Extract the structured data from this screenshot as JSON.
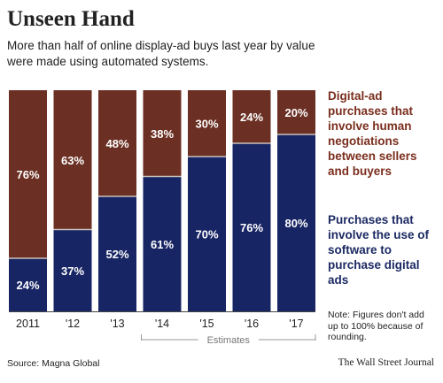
{
  "header": {
    "title": "Unseen Hand",
    "subtitle": "More than half of online display-ad buys last year by value were made using automated systems."
  },
  "legend": {
    "human": "Digital-ad purchases that involve human negotiations between sellers and buyers",
    "software": "Purchases that involve the use of software to purchase digital ads"
  },
  "note": "Note: Figures don't add up to 100% because of rounding.",
  "source": "Source: Magna Global",
  "credit": "The Wall Street Journal",
  "colors": {
    "human": "#6b2f23",
    "software": "#182564"
  },
  "chart_data": {
    "type": "bar",
    "stacked": true,
    "categories": [
      "2011",
      "'12",
      "'13",
      "'14",
      "'15",
      "'16",
      "'17"
    ],
    "series": [
      {
        "name": "Purchases that involve the use of software to purchase digital ads",
        "values": [
          24,
          37,
          52,
          61,
          70,
          76,
          80
        ],
        "labels": [
          "24%",
          "37%",
          "52%",
          "61%",
          "70%",
          "76%",
          "80%"
        ]
      },
      {
        "name": "Digital-ad purchases that involve human negotiations between sellers and buyers",
        "values": [
          76,
          63,
          48,
          38,
          30,
          24,
          20
        ],
        "labels": [
          "76%",
          "63%",
          "48%",
          "38%",
          "30%",
          "24%",
          "20%"
        ]
      }
    ],
    "ylim": [
      0,
      100
    ],
    "annotation": "Estimates",
    "estimate_range": [
      "'14",
      "'17"
    ]
  }
}
